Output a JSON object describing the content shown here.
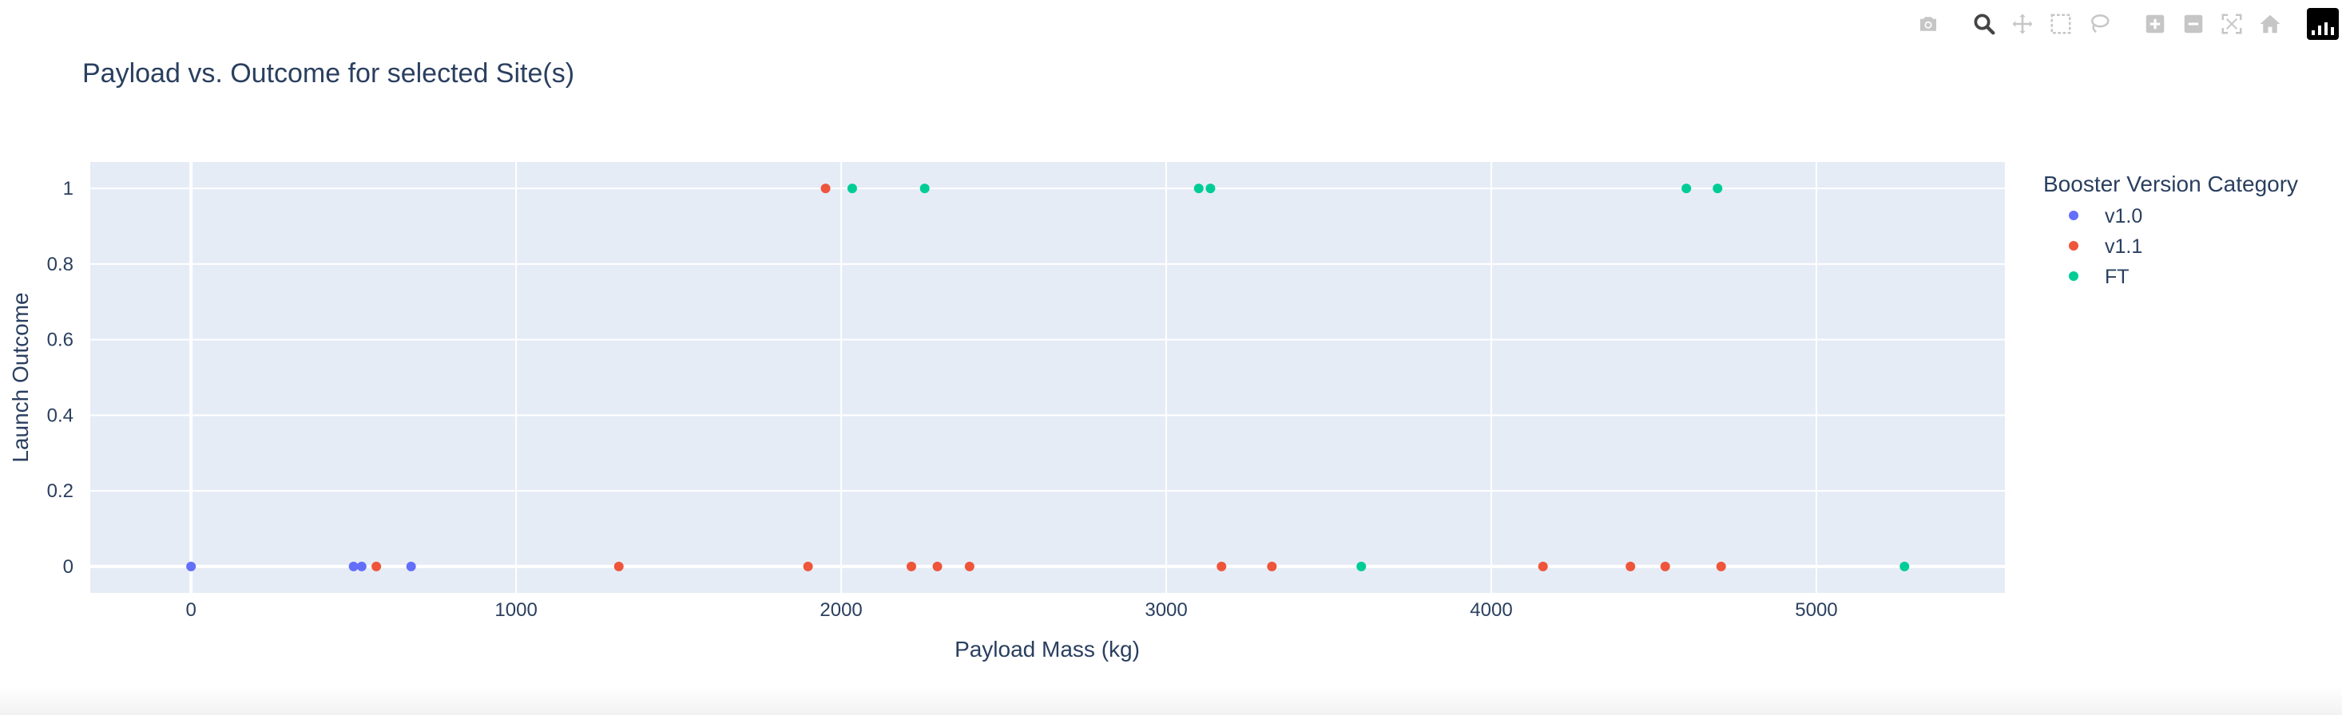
{
  "modebar": {
    "buttons": [
      "camera-icon",
      "zoom-icon",
      "pan-icon",
      "box-select-icon",
      "lasso-icon",
      "zoom-in-icon",
      "zoom-out-icon",
      "autoscale-icon",
      "reset-axes-icon"
    ],
    "logo": "plotly-logo-icon"
  },
  "chart_data": {
    "type": "scatter",
    "title": "Payload vs. Outcome for selected Site(s)",
    "xlabel": "Payload Mass (kg)",
    "ylabel": "Launch Outcome",
    "xlim": [
      -310,
      5580
    ],
    "ylim": [
      -0.07,
      1.07
    ],
    "xticks": [
      0,
      1000,
      2000,
      3000,
      4000,
      5000
    ],
    "yticks": [
      0,
      0.2,
      0.4,
      0.6,
      0.8,
      1
    ],
    "grid": true,
    "plot_bgcolor": "#e5ecf6",
    "legend": {
      "title": "Booster Version Category",
      "placement": "right"
    },
    "series": [
      {
        "name": "v1.0",
        "color": "#636efa",
        "points": [
          [
            0,
            0
          ],
          [
            500,
            0
          ],
          [
            525,
            0
          ],
          [
            677,
            0
          ]
        ]
      },
      {
        "name": "v1.1",
        "color": "#ef553b",
        "points": [
          [
            570,
            0
          ],
          [
            1316,
            0
          ],
          [
            1898,
            0
          ],
          [
            1952,
            1
          ],
          [
            2216,
            0
          ],
          [
            2296,
            0
          ],
          [
            2395,
            0
          ],
          [
            3170,
            0
          ],
          [
            3325,
            0
          ],
          [
            4159,
            0
          ],
          [
            4428,
            0
          ],
          [
            4535,
            0
          ],
          [
            4707,
            0
          ]
        ]
      },
      {
        "name": "FT",
        "color": "#00cc96",
        "points": [
          [
            2034,
            1
          ],
          [
            2257,
            1
          ],
          [
            3100,
            1
          ],
          [
            3136,
            1
          ],
          [
            3600,
            0
          ],
          [
            4600,
            1
          ],
          [
            4696,
            1
          ],
          [
            5271,
            0
          ]
        ]
      }
    ]
  }
}
